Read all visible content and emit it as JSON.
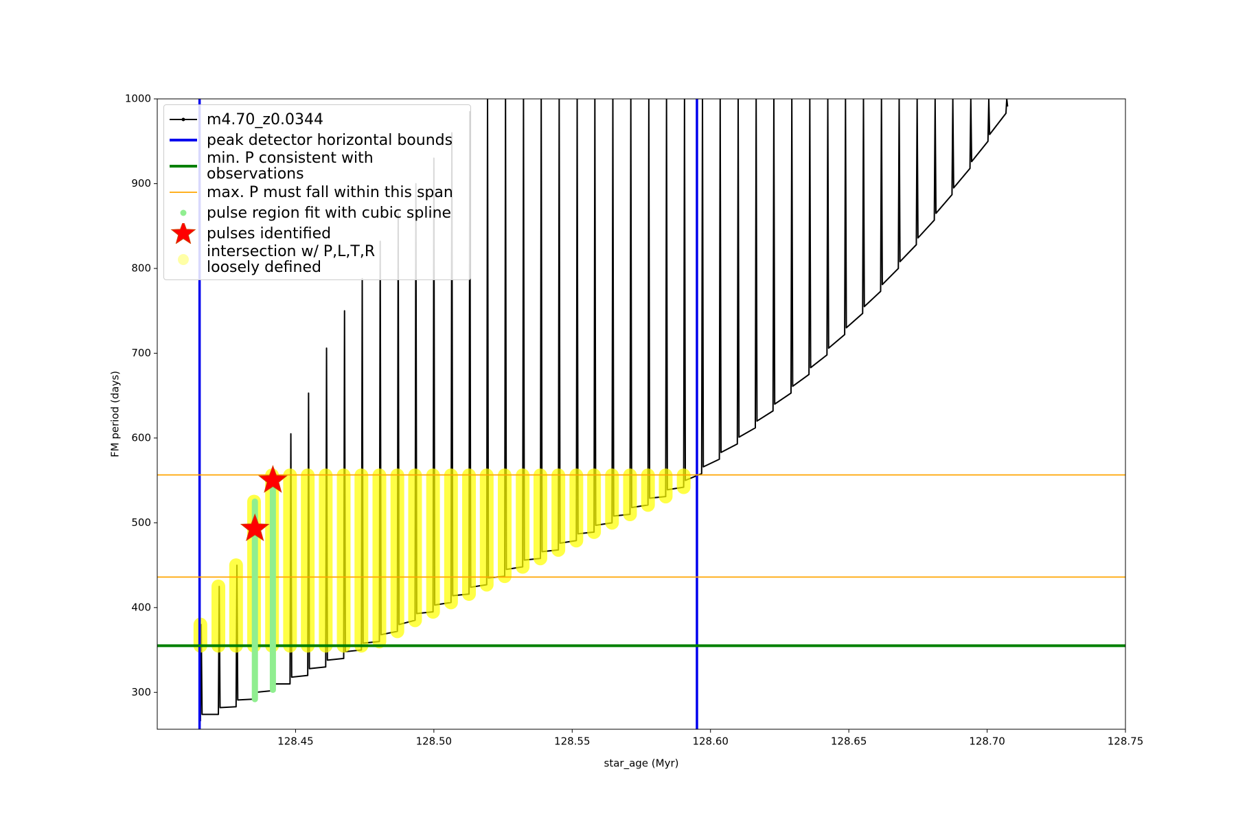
{
  "chart_data": {
    "type": "line",
    "xlabel": "star_age (Myr)",
    "ylabel": "FM period (days)",
    "xlim": [
      128.4,
      128.75
    ],
    "ylim": [
      256.5,
      1000
    ],
    "xticks": [
      128.45,
      {
        "value": 128.5,
        "label": "128.50"
      },
      128.55,
      {
        "value": 128.6,
        "label": "128.60"
      },
      128.65,
      {
        "value": 128.7,
        "label": "128.70"
      },
      128.75
    ],
    "yticks": [
      300,
      400,
      500,
      600,
      700,
      800,
      900,
      1000
    ],
    "legend": "upper left",
    "series": [
      {
        "name": "m4.70_z0.0344",
        "kind": "line",
        "color": "#000000",
        "x": [
          128.4156,
          128.4159,
          128.4162,
          128.4221,
          128.4224,
          128.4227,
          128.4285,
          128.4288,
          128.4291,
          128.435,
          128.4353,
          128.4356,
          128.4415,
          128.4418,
          128.4421,
          128.448,
          128.4483,
          128.4486,
          128.4544,
          128.4547,
          128.455,
          128.4609,
          128.4612,
          128.4615,
          128.4674,
          128.4677,
          128.468,
          128.4738,
          128.4741,
          128.4744,
          128.4803,
          128.4806,
          128.4809,
          128.4868,
          128.4871,
          128.4874,
          128.4932,
          128.4935,
          128.4938,
          128.4997,
          128.5,
          128.5003,
          128.5062,
          128.5065,
          128.5068,
          128.5127,
          128.513,
          128.5133,
          128.5191,
          128.5194,
          128.5197,
          128.5256,
          128.5259,
          128.5262,
          128.5321,
          128.5324,
          128.5327,
          128.5385,
          128.5388,
          128.5391,
          128.545,
          128.5453,
          128.5456,
          128.5515,
          128.5518,
          128.5521,
          128.5579,
          128.5582,
          128.5585,
          128.5644,
          128.5647,
          128.565,
          128.5709,
          128.5712,
          128.5715,
          128.5774,
          128.5777,
          128.578,
          128.5838,
          128.5841,
          128.5844,
          128.5903,
          128.5906,
          128.5909,
          128.5968,
          128.5971,
          128.5974,
          128.6032,
          128.6035,
          128.6038,
          128.6097,
          128.61,
          128.6103,
          128.6162,
          128.6165,
          128.6168,
          128.6226,
          128.6229,
          128.6232,
          128.6291,
          128.6294,
          128.6297,
          128.6356,
          128.6359,
          128.6362,
          128.6421,
          128.6424,
          128.6427,
          128.6485,
          128.6488,
          128.6491,
          128.655,
          128.6553,
          128.6556,
          128.6615,
          128.6618,
          128.6621,
          128.6679,
          128.6682,
          128.6685,
          128.6744,
          128.6747,
          128.675,
          128.6809,
          128.6812,
          128.6815,
          128.6873,
          128.6876,
          128.6879,
          128.6938,
          128.6941,
          128.6944,
          128.7003,
          128.7006,
          128.7009,
          128.7068,
          128.7071,
          128.7074
        ],
        "values": [
          266,
          380,
          274,
          274,
          425,
          282,
          283,
          450,
          291,
          292,
          525,
          300,
          302,
          560,
          310,
          310,
          605,
          318,
          320,
          653,
          328,
          330,
          706,
          338,
          340,
          750,
          348,
          350,
          788,
          358,
          360,
          832,
          368,
          372,
          865,
          380,
          385,
          900,
          393,
          395,
          930,
          403,
          406,
          960,
          414,
          416,
          985,
          424,
          427,
          1000,
          435,
          437,
          1000,
          445,
          448,
          1000,
          456,
          458,
          1000,
          466,
          468,
          1000,
          476,
          479,
          1000,
          487,
          489,
          1000,
          497,
          500,
          1000,
          508,
          510,
          1000,
          518,
          521,
          1000,
          529,
          531,
          1000,
          539,
          542,
          1000,
          550,
          558,
          1000,
          566,
          575,
          1000,
          583,
          593,
          1000,
          601,
          612,
          1000,
          620,
          632,
          1000,
          640,
          653,
          1000,
          661,
          675,
          1000,
          683,
          698,
          1000,
          706,
          722,
          1000,
          730,
          747,
          1000,
          755,
          773,
          1000,
          781,
          800,
          1000,
          808,
          828,
          1000,
          836,
          857,
          1000,
          865,
          887,
          1000,
          895,
          918,
          1000,
          926,
          950,
          1000,
          958,
          983,
          1000,
          991
        ]
      },
      {
        "name": "peak detector horizontal bounds",
        "kind": "vline",
        "color": "#0000ee",
        "x": [
          128.4153,
          128.5951
        ]
      },
      {
        "name": "min. P consistent with observations",
        "kind": "hline",
        "color": "#008000",
        "values": [
          355
        ]
      },
      {
        "name": "max. P must fall within this span",
        "kind": "hline",
        "color": "#ffa500",
        "values": [
          436,
          556.5
        ]
      },
      {
        "name": "pulse region fit with cubic spline",
        "kind": "segments",
        "color": "#90ee90",
        "x": [
          128.4353,
          128.4418
        ],
        "values": [
          525,
          540
        ],
        "lows": [
          292,
          303
        ]
      },
      {
        "name": "pulses identified",
        "kind": "star",
        "color": "#ff0000",
        "x": [
          128.4353,
          128.4418
        ],
        "values": [
          493,
          550
        ]
      },
      {
        "name": "intersection w/ P,L,T,R\nloosely defined",
        "kind": "segments",
        "color": "#ffff00",
        "x": [
          128.4156,
          128.4221,
          128.4285,
          128.435,
          128.4415,
          128.448,
          128.4544,
          128.4609,
          128.4674,
          128.4738,
          128.4803,
          128.4868,
          128.4932,
          128.4997,
          128.5062,
          128.5127,
          128.5191,
          128.5256,
          128.5321,
          128.5385,
          128.545,
          128.5515,
          128.5579,
          128.5644,
          128.5709,
          128.5774,
          128.5838,
          128.5903
        ],
        "values": [
          380,
          425,
          450,
          525,
          556,
          556,
          556,
          556,
          556,
          556,
          556,
          556,
          556,
          556,
          556,
          556,
          556,
          556,
          556,
          556,
          556,
          556,
          556,
          556,
          556,
          556,
          556,
          556
        ],
        "lows": [
          355,
          355,
          355,
          355,
          355,
          355,
          355,
          355,
          355,
          355,
          360,
          372,
          385,
          395,
          406,
          416,
          427,
          437,
          448,
          458,
          468,
          479,
          489,
          500,
          510,
          521,
          531,
          542
        ]
      }
    ]
  }
}
